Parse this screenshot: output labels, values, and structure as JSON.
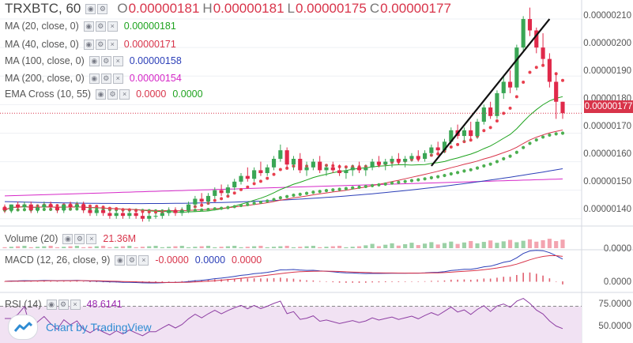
{
  "header": {
    "symbol": "TRXBTC, 60",
    "ohlc": [
      {
        "k": "O",
        "v": "0.00000181"
      },
      {
        "k": "H",
        "v": "0.00000181"
      },
      {
        "k": "L",
        "v": "0.00000175"
      },
      {
        "k": "C",
        "v": "0.00000177"
      }
    ]
  },
  "indicators": [
    {
      "label": "MA (20, close, 0)",
      "value": "0.00000181",
      "color": "#1fa31f"
    },
    {
      "label": "MA (40, close, 0)",
      "value": "0.00000171",
      "color": "#d8344a"
    },
    {
      "label": "MA (100, close, 0)",
      "value": "0.00000158",
      "color": "#2c3fb8"
    },
    {
      "label": "MA (200, close, 0)",
      "value": "0.00000154",
      "color": "#d628c8"
    },
    {
      "label": "EMA Cross (10, 55)",
      "value": "0.0000",
      "value2": "0.0000",
      "color": "#d8344a",
      "color2": "#1fa31f"
    }
  ],
  "current_price": "0.00000177",
  "price_axis": [
    "0.00000210",
    "0.00000200",
    "0.00000190",
    "0.00000180",
    "0.00000170",
    "0.00000160",
    "0.00000150",
    "0.00000140"
  ],
  "volume": {
    "label": "Volume (20)",
    "value": "21.36M",
    "color": "#d8344a"
  },
  "macd": {
    "label": "MACD (12, 26, close, 9)",
    "v1": "-0.0000",
    "v2": "0.0000",
    "v3": "0.0000",
    "c1": "#d8344a",
    "c2": "#2c3fb8",
    "c3": "#d8344a",
    "axis": [
      "0.0000",
      "0.0000"
    ]
  },
  "rsi": {
    "label": "RSI (14)",
    "value": "48.6141",
    "color": "#9c27b0",
    "axis": [
      "75.0000",
      "50.0000"
    ]
  },
  "brand": "Chart by TradingView",
  "chart_data": {
    "type": "candlestick",
    "series_note": "TRXBTC hourly candles, approximate values read from the price axis (x 1e-8 BTC)",
    "ylim": [
      138,
      215
    ],
    "candles": [
      [
        144,
        145,
        142,
        143
      ],
      [
        143,
        145,
        142,
        145
      ],
      [
        145,
        146,
        143,
        144
      ],
      [
        144,
        146,
        143,
        145
      ],
      [
        145,
        146,
        142,
        143
      ],
      [
        143,
        145,
        142,
        144
      ],
      [
        144,
        146,
        143,
        145
      ],
      [
        145,
        146,
        143,
        144
      ],
      [
        144,
        145,
        142,
        143
      ],
      [
        143,
        145,
        142,
        145
      ],
      [
        145,
        146,
        143,
        144
      ],
      [
        144,
        146,
        143,
        145
      ],
      [
        145,
        146,
        142,
        143
      ],
      [
        143,
        144,
        141,
        142
      ],
      [
        142,
        144,
        141,
        143
      ],
      [
        143,
        144,
        141,
        142
      ],
      [
        142,
        143,
        140,
        141
      ],
      [
        141,
        143,
        140,
        142
      ],
      [
        142,
        143,
        140,
        141
      ],
      [
        141,
        143,
        140,
        142
      ],
      [
        142,
        143,
        140,
        141
      ],
      [
        141,
        142,
        139,
        140
      ],
      [
        140,
        142,
        139,
        141
      ],
      [
        141,
        142,
        140,
        141
      ],
      [
        141,
        143,
        140,
        142
      ],
      [
        142,
        144,
        141,
        143
      ],
      [
        143,
        144,
        141,
        142
      ],
      [
        142,
        144,
        141,
        143
      ],
      [
        143,
        146,
        142,
        145
      ],
      [
        145,
        148,
        144,
        147
      ],
      [
        147,
        149,
        145,
        146
      ],
      [
        146,
        149,
        145,
        148
      ],
      [
        148,
        151,
        147,
        150
      ],
      [
        150,
        152,
        148,
        149
      ],
      [
        149,
        152,
        148,
        151
      ],
      [
        151,
        154,
        150,
        153
      ],
      [
        153,
        156,
        152,
        155
      ],
      [
        155,
        158,
        153,
        154
      ],
      [
        154,
        158,
        153,
        157
      ],
      [
        157,
        160,
        155,
        156
      ],
      [
        156,
        159,
        155,
        158
      ],
      [
        158,
        162,
        157,
        161
      ],
      [
        161,
        166,
        160,
        164
      ],
      [
        164,
        165,
        158,
        159
      ],
      [
        159,
        162,
        157,
        161
      ],
      [
        161,
        163,
        156,
        157
      ],
      [
        157,
        160,
        155,
        158
      ],
      [
        158,
        161,
        157,
        160
      ],
      [
        160,
        162,
        156,
        157
      ],
      [
        157,
        159,
        155,
        158
      ],
      [
        158,
        160,
        156,
        157
      ],
      [
        157,
        159,
        155,
        156
      ],
      [
        156,
        158,
        154,
        157
      ],
      [
        157,
        159,
        155,
        158
      ],
      [
        158,
        160,
        156,
        157
      ],
      [
        157,
        159,
        155,
        158
      ],
      [
        158,
        161,
        157,
        160
      ],
      [
        160,
        162,
        158,
        159
      ],
      [
        159,
        161,
        157,
        160
      ],
      [
        160,
        162,
        158,
        161
      ],
      [
        161,
        163,
        159,
        160
      ],
      [
        160,
        162,
        158,
        161
      ],
      [
        161,
        163,
        160,
        162
      ],
      [
        162,
        164,
        160,
        161
      ],
      [
        161,
        164,
        160,
        163
      ],
      [
        163,
        166,
        162,
        165
      ],
      [
        165,
        167,
        163,
        164
      ],
      [
        164,
        168,
        163,
        167
      ],
      [
        167,
        172,
        166,
        171
      ],
      [
        171,
        173,
        168,
        169
      ],
      [
        169,
        172,
        167,
        171
      ],
      [
        171,
        174,
        168,
        169
      ],
      [
        169,
        175,
        168,
        174
      ],
      [
        174,
        180,
        173,
        179
      ],
      [
        179,
        181,
        175,
        176
      ],
      [
        176,
        185,
        175,
        184
      ],
      [
        184,
        190,
        182,
        188
      ],
      [
        188,
        192,
        184,
        186
      ],
      [
        186,
        201,
        185,
        200
      ],
      [
        200,
        211,
        199,
        210
      ],
      [
        210,
        214,
        204,
        206
      ],
      [
        206,
        207,
        198,
        200
      ],
      [
        200,
        205,
        194,
        196
      ],
      [
        196,
        198,
        186,
        188
      ],
      [
        188,
        191,
        175,
        181
      ],
      [
        181,
        181,
        175,
        177
      ]
    ],
    "volume_axis": [],
    "rsi_levels": [
      75,
      50
    ]
  }
}
